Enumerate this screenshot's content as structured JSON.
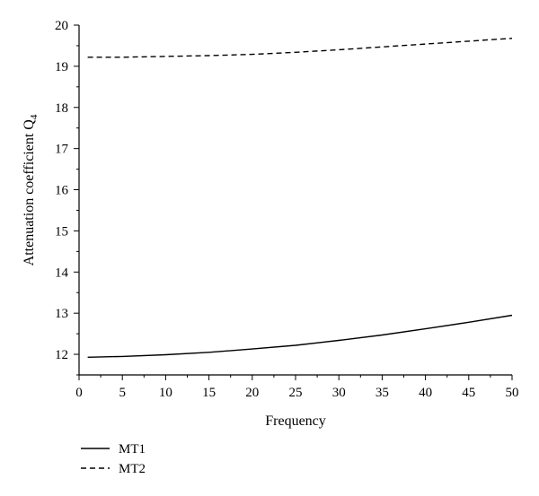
{
  "chart_data": {
    "type": "line",
    "xlabel": "Frequency",
    "ylabel": "Attenuation coefficient Q",
    "ylabel_subscript": "4",
    "xlim": [
      0,
      50
    ],
    "ylim": [
      11.5,
      20
    ],
    "x_ticks": [
      0,
      5,
      10,
      15,
      20,
      25,
      30,
      35,
      40,
      45,
      50
    ],
    "y_ticks": [
      12,
      13,
      14,
      15,
      16,
      17,
      18,
      19,
      20
    ],
    "grid": false,
    "legend_position": "bottom-left",
    "series": [
      {
        "name": "MT1",
        "line_style": "solid",
        "color": "#000000",
        "x": [
          1,
          5,
          10,
          15,
          20,
          25,
          30,
          35,
          40,
          45,
          50
        ],
        "y": [
          11.93,
          11.95,
          11.99,
          12.05,
          12.13,
          12.22,
          12.34,
          12.47,
          12.62,
          12.78,
          12.95
        ]
      },
      {
        "name": "MT2",
        "line_style": "dashed",
        "color": "#000000",
        "x": [
          1,
          5,
          10,
          15,
          20,
          25,
          30,
          35,
          40,
          45,
          50
        ],
        "y": [
          19.22,
          19.22,
          19.24,
          19.26,
          19.29,
          19.34,
          19.4,
          19.47,
          19.54,
          19.61,
          19.68
        ]
      }
    ]
  }
}
